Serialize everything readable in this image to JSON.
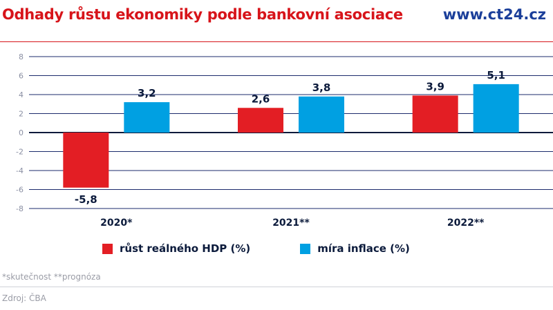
{
  "header": {
    "title": "Odhady růstu ekonomiky podle bankovní asociace",
    "site": "www.ct24.cz"
  },
  "colors": {
    "title": "#d7141a",
    "site": "#1b3f9a",
    "gdp": "#e31e24",
    "inflation": "#00a0e2",
    "axis": "#0b1a3b",
    "grid": "#1b2a6b"
  },
  "chart_data": {
    "type": "bar",
    "title": "Odhady růstu ekonomiky podle bankovní asociace",
    "categories": [
      "2020*",
      "2021**",
      "2022**"
    ],
    "series": [
      {
        "name": "růst reálného HDP (%)",
        "values": [
          -5.8,
          2.6,
          3.9
        ],
        "labels": [
          "-5,8",
          "2,6",
          "3,9"
        ]
      },
      {
        "name": "míra inflace (%)",
        "values": [
          3.2,
          3.8,
          5.1
        ],
        "labels": [
          "3,2",
          "3,8",
          "5,1"
        ]
      }
    ],
    "ylim": [
      -8,
      8
    ],
    "yticks": [
      8,
      6,
      4,
      2,
      0,
      -2,
      -4,
      -6,
      -8
    ],
    "ytick_labels": [
      "8",
      "6",
      "4",
      "2",
      "0",
      "-2",
      "-4",
      "-6",
      "-8"
    ],
    "grid": true,
    "legend_position": "bottom-center",
    "xlabel": "",
    "ylabel": ""
  },
  "legend": {
    "items": [
      {
        "label": "růst reálného HDP (%)"
      },
      {
        "label": "míra inflace (%)"
      }
    ]
  },
  "footnote": "*skutečnost **prognóza",
  "source": "Zdroj: ČBA"
}
